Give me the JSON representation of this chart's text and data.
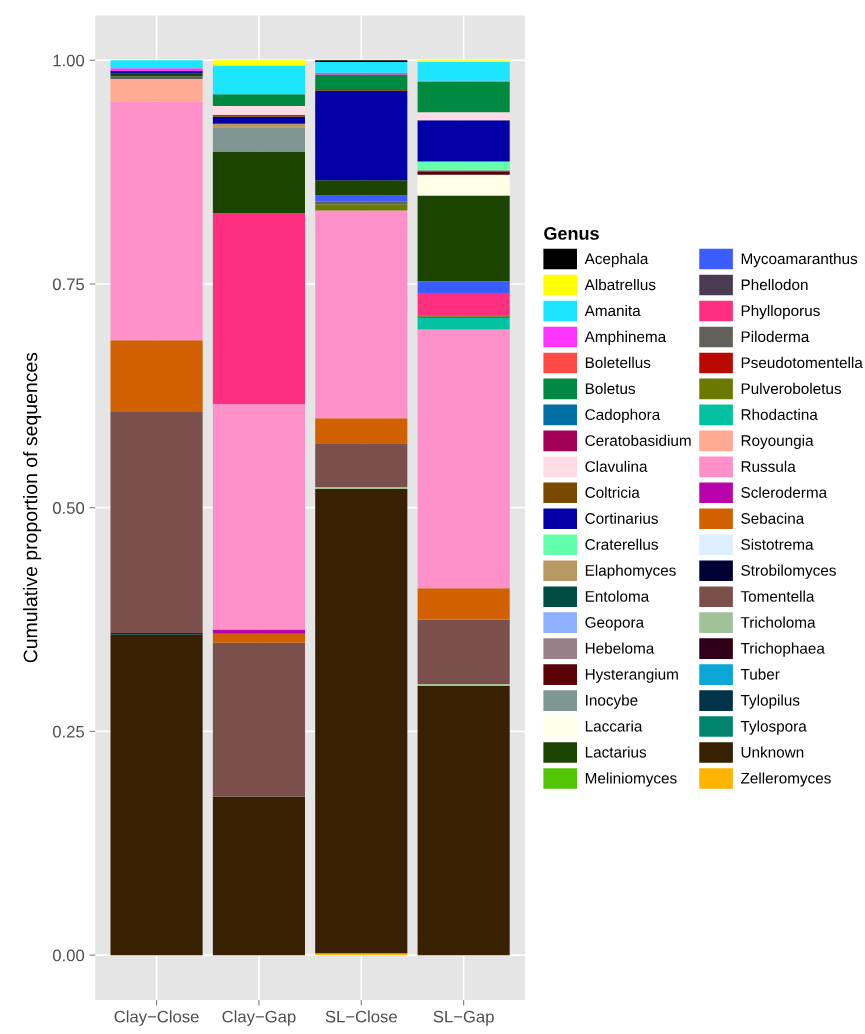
{
  "chart_data": {
    "type": "bar",
    "stacked": true,
    "ylabel": "Cumulative proportion of sequences",
    "legend_title": "Genus",
    "legend": "right",
    "grid": true,
    "categories": [
      "Clay−Close",
      "Clay−Gap",
      "SL−Close",
      "SL−Gap"
    ],
    "ylim": [
      -0.05,
      1.05
    ],
    "yticks": [
      {
        "value": 0,
        "label": "0.00"
      },
      {
        "value": 0.25,
        "label": "0.25"
      },
      {
        "value": 0.5,
        "label": "0.50"
      },
      {
        "value": 0.75,
        "label": "0.75"
      },
      {
        "value": 1,
        "label": "1.00"
      }
    ],
    "series": [
      {
        "name": "Zelleromyces",
        "color": "#ffb500",
        "values": [
          null,
          null,
          0.002,
          null
        ]
      },
      {
        "name": "Unknown",
        "color": "#372101",
        "values": [
          0.358,
          0.177,
          0.519,
          0.301
        ]
      },
      {
        "name": "Tylospora",
        "color": "#00846f",
        "values": [
          null,
          null,
          null,
          null
        ]
      },
      {
        "name": "Tylopilus",
        "color": "#013349",
        "values": [
          0.002,
          null,
          null,
          null
        ]
      },
      {
        "name": "Tuber",
        "color": "#0aa6d8",
        "values": [
          null,
          null,
          null,
          null
        ]
      },
      {
        "name": "Trichophaea",
        "color": "#300018",
        "values": [
          null,
          null,
          null,
          null
        ]
      },
      {
        "name": "Tricholoma",
        "color": "#a1c299",
        "values": [
          null,
          null,
          0.002,
          0.002
        ]
      },
      {
        "name": "Tomentella",
        "color": "#7b4f4b",
        "values": [
          0.247,
          0.172,
          0.049,
          0.072
        ]
      },
      {
        "name": "Strobilomyces",
        "color": "#000035",
        "values": [
          null,
          null,
          null,
          null
        ]
      },
      {
        "name": "Sistotrema",
        "color": "#ddefff",
        "values": [
          null,
          null,
          null,
          null
        ]
      },
      {
        "name": "Sebacina",
        "color": "#d16100",
        "values": [
          0.08,
          0.01,
          0.028,
          0.035
        ]
      },
      {
        "name": "Scleroderma",
        "color": "#b903aa",
        "values": [
          null,
          0.005,
          null,
          null
        ]
      },
      {
        "name": "Russula",
        "color": "#ff90c9",
        "values": [
          0.267,
          0.252,
          0.232,
          0.289
        ]
      },
      {
        "name": "Royoungia",
        "color": "#ffaa92",
        "values": [
          0.025,
          null,
          null,
          null
        ]
      },
      {
        "name": "Rhodactina",
        "color": "#00c2a0",
        "values": [
          null,
          null,
          null,
          0.013
        ]
      },
      {
        "name": "Pulveroboletus",
        "color": "#6b7900",
        "values": [
          null,
          null,
          0.007,
          0.002
        ]
      },
      {
        "name": "Pseudotomentella",
        "color": "#ba0900",
        "values": [
          null,
          null,
          null,
          null
        ]
      },
      {
        "name": "Piloderma",
        "color": "#61615a",
        "values": [
          0.003,
          null,
          0.003,
          0.001
        ]
      },
      {
        "name": "Phylloporus",
        "color": "#ff2f80",
        "values": [
          null,
          0.213,
          null,
          0.025
        ]
      },
      {
        "name": "Phellodon",
        "color": "#4a3b53",
        "values": [
          null,
          null,
          null,
          null
        ]
      },
      {
        "name": "Mycoamaranthus",
        "color": "#3b5dff",
        "values": [
          null,
          null,
          0.007,
          0.013
        ]
      },
      {
        "name": "Meliniomyces",
        "color": "#4fc601",
        "values": [
          null,
          null,
          null,
          null
        ]
      },
      {
        "name": "Lactarius",
        "color": "#1b4400",
        "values": [
          0.003,
          0.069,
          0.017,
          0.096
        ]
      },
      {
        "name": "Laccaria",
        "color": "#feffe6",
        "values": [
          null,
          null,
          null,
          0.023
        ]
      },
      {
        "name": "Inocybe",
        "color": "#809693",
        "values": [
          null,
          0.027,
          null,
          null
        ]
      },
      {
        "name": "Hysterangium",
        "color": "#5a0007",
        "values": [
          null,
          null,
          null,
          0.004
        ]
      },
      {
        "name": "Hebeloma",
        "color": "#997d87",
        "values": [
          null,
          null,
          null,
          0.001
        ]
      },
      {
        "name": "Geopora",
        "color": "#8fb0ff",
        "values": [
          null,
          null,
          null,
          null
        ]
      },
      {
        "name": "Entoloma",
        "color": "#004d43",
        "values": [
          null,
          null,
          null,
          null
        ]
      },
      {
        "name": "Elaphomyces",
        "color": "#b79762",
        "values": [
          null,
          0.004,
          null,
          null
        ]
      },
      {
        "name": "Craterellus",
        "color": "#63ffac",
        "values": [
          null,
          null,
          null,
          0.01
        ]
      },
      {
        "name": "Cortinarius",
        "color": "#0000a6",
        "values": [
          0.003,
          0.008,
          0.1,
          0.046
        ]
      },
      {
        "name": "Coltricia",
        "color": "#7a4900",
        "values": [
          null,
          0.002,
          0.002,
          null
        ]
      },
      {
        "name": "Clavulina",
        "color": "#ffdbe5",
        "values": [
          null,
          0.01,
          null,
          0.009
        ]
      },
      {
        "name": "Ceratobasidium",
        "color": "#a30059",
        "values": [
          null,
          null,
          null,
          null
        ]
      },
      {
        "name": "Cadophora",
        "color": "#006fa6",
        "values": [
          null,
          null,
          null,
          null
        ]
      },
      {
        "name": "Boletus",
        "color": "#008941",
        "values": [
          null,
          0.013,
          0.016,
          0.034
        ]
      },
      {
        "name": "Boletellus",
        "color": "#ff4a46",
        "values": [
          null,
          null,
          null,
          null
        ]
      },
      {
        "name": "Amphinema",
        "color": "#ff34ff",
        "values": [
          0.003,
          null,
          0.002,
          0.001
        ]
      },
      {
        "name": "Amanita",
        "color": "#1ce6ff",
        "values": [
          0.009,
          0.032,
          0.012,
          0.021
        ]
      },
      {
        "name": "Albatrellus",
        "color": "#ffff00",
        "values": [
          null,
          0.006,
          null,
          0.002
        ]
      },
      {
        "name": "Acephala",
        "color": "#000000",
        "values": [
          null,
          null,
          0.002,
          null
        ]
      }
    ]
  }
}
